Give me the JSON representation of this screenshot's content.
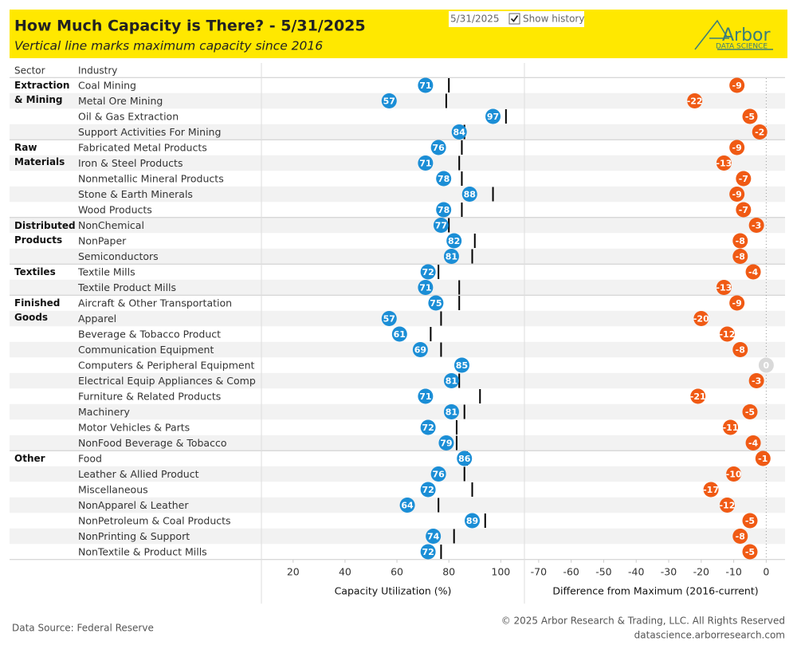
{
  "header": {
    "title": "How Much Capacity is There? - 5/31/2025",
    "subtitle": "Vertical line marks maximum capacity since 2016",
    "logo": "Arbor",
    "logo_sub": "DATA SCIENCE"
  },
  "controls": {
    "date": "5/31/2025",
    "show_history": "Show history",
    "checked": true
  },
  "columns": {
    "sector": "Sector",
    "industry": "Industry"
  },
  "footer": {
    "source": "Data Source: Federal Reserve",
    "copyright": "© 2025 Arbor Research & Trading, LLC. All Rights Reserved",
    "url": "datascience.arborresearch.com"
  },
  "chart_data": [
    {
      "type": "dot",
      "xlabel": "Capacity Utilization (%)",
      "categories": [
        "Coal Mining",
        "Metal Ore Mining",
        "Oil & Gas Extraction",
        "Support Activities For Mining",
        "Fabricated Metal Products",
        "Iron & Steel Products",
        "Nonmetallic Mineral Products",
        "Stone & Earth Minerals",
        "Wood Products",
        "NonChemical",
        "NonPaper",
        "Semiconductors",
        "Textile Mills",
        "Textile Product Mills",
        "Aircraft & Other Transportation",
        "Apparel",
        "Beverage & Tobacco Product",
        "Communication Equipment",
        "Computers & Peripheral Equipment",
        "Electrical Equip Appliances & Comp",
        "Furniture & Related Products",
        "Machinery",
        "Motor Vehicles & Parts",
        "NonFood Beverage & Tobacco",
        "Food",
        "Leather & Allied Product",
        "Miscellaneous",
        "NonApparel & Leather",
        "NonPetroleum & Coal Products",
        "NonPrinting & Support",
        "NonTextile & Product Mills"
      ],
      "sectors": [
        "Extraction & Mining",
        null,
        null,
        null,
        "Raw Materials",
        null,
        null,
        null,
        null,
        "Distributed Products",
        null,
        null,
        "Textiles",
        null,
        "Finished Goods",
        null,
        null,
        null,
        null,
        null,
        null,
        null,
        null,
        null,
        "Other",
        null,
        null,
        null,
        null,
        null,
        null
      ],
      "values": [
        71,
        57,
        97,
        84,
        76,
        71,
        78,
        88,
        78,
        77,
        82,
        81,
        72,
        71,
        75,
        57,
        61,
        69,
        85,
        81,
        71,
        81,
        72,
        79,
        86,
        76,
        72,
        64,
        89,
        74,
        72
      ],
      "max_values": [
        80,
        79,
        102,
        86,
        85,
        84,
        85,
        97,
        85,
        80,
        90,
        89,
        76,
        84,
        84,
        77,
        73,
        77,
        85,
        84,
        92,
        86,
        83,
        83,
        87,
        86,
        89,
        76,
        94,
        82,
        77
      ],
      "color": "#1b8ed6",
      "max_color": "#000000",
      "xlim": [
        8.4,
        108.5
      ],
      "xticks": [
        20,
        40,
        60,
        80,
        100
      ]
    },
    {
      "type": "dot",
      "xlabel": "Difference from Maximum (2016-current)",
      "values": [
        -9,
        -22,
        -5,
        -2,
        -9,
        -13,
        -7,
        -9,
        -7,
        -3,
        -8,
        -8,
        -4,
        -13,
        -9,
        -20,
        -12,
        -8,
        0,
        -3,
        -21,
        -5,
        -11,
        -4,
        -1,
        -10,
        -17,
        -12,
        -5,
        -8,
        -5
      ],
      "color": "#f05a14",
      "zero_color": "#d9d9d9",
      "reference_line": true,
      "xlim": [
        -73.4,
        5.3
      ],
      "xticks": [
        -70,
        -60,
        -50,
        -40,
        -30,
        -20,
        -10,
        0
      ]
    }
  ]
}
